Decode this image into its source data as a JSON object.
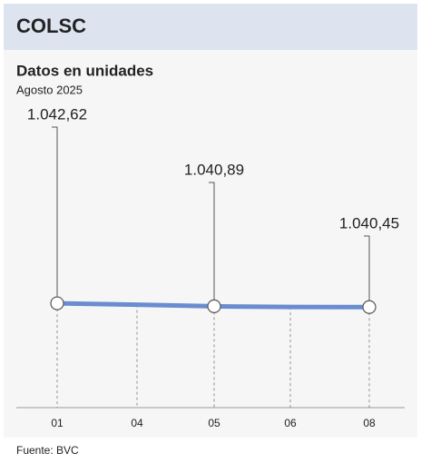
{
  "chart_data": {
    "type": "line",
    "header": "COLSC",
    "title": "Datos en unidades",
    "subtitle": "Agosto 2025",
    "source": "Fuente: BVC",
    "categories": [
      "01",
      "04",
      "05",
      "06",
      "08"
    ],
    "series": [
      {
        "color": "#6a8cd0",
        "values": [
          1042.62,
          1041.8,
          1040.89,
          1040.5,
          1040.45
        ],
        "value_labels": [
          "1.042,62",
          null,
          "1.040,89",
          null,
          "1.040,45"
        ]
      }
    ],
    "ylim": [
      985,
      1185
    ]
  }
}
